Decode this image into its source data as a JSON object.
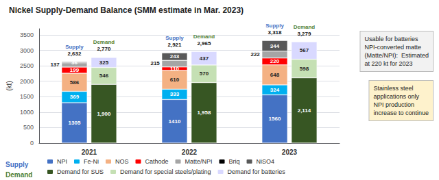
{
  "chart_data": {
    "type": "bar",
    "title": "Nickel Supply-Demand Balance (SMM estimate in Mar. 2023)",
    "ylabel": "(kt)",
    "categories": [
      "2021",
      "2022",
      "2023"
    ],
    "stacked": true,
    "data_labels": true,
    "grid": true,
    "legend": "bottom",
    "ylim": [
      0,
      3700
    ],
    "yticks": [
      0,
      500,
      1000,
      1500,
      2000,
      2500,
      3000,
      3500
    ],
    "stacks": [
      {
        "name": "Supply",
        "color": "#4472C4",
        "totals": [
          2632,
          2921,
          3318
        ],
        "total_labels": [
          "2,632",
          "2,921",
          "3,318"
        ],
        "series": [
          {
            "name": "NPI",
            "color": "#4472C4",
            "values": [
              1305,
              1410,
              1560
            ]
          },
          {
            "name": "Fe-Ni",
            "color": "#00B0F0",
            "values": [
              369,
              333,
              324
            ]
          },
          {
            "name": "NOS",
            "color": "#F4B183",
            "values": [
              586,
              610,
              648
            ]
          },
          {
            "name": "Cathode",
            "color": "#FF0000",
            "values": [
              199,
              110,
              220
            ]
          },
          {
            "name": "Matte/NPI",
            "color": "#A5A5A5",
            "values": [
              137,
              215,
              222
            ]
          },
          {
            "name": "Briq",
            "color": "#000000",
            "values": [
              null,
              null,
              null
            ]
          },
          {
            "name": "NiSO4",
            "color": "#595959",
            "values": [
              36,
              243,
              344
            ]
          }
        ]
      },
      {
        "name": "Demand",
        "color": "#548235",
        "totals": [
          2770,
          2965,
          3279
        ],
        "total_labels": [
          "2,770",
          "2,965",
          "3,279"
        ],
        "series": [
          {
            "name": "Demand for SUS",
            "color": "#375623",
            "values": [
              1900,
              1958,
              2114
            ],
            "value_labels": [
              "1,900",
              "1,958",
              "2,114"
            ]
          },
          {
            "name": "Demand for special steels/plating",
            "color": "#C5E0B4",
            "values": [
              546,
              570,
              598
            ]
          },
          {
            "name": "Demand for batteries",
            "color": "#D9D9FF",
            "values": [
              325,
              437,
              567
            ]
          }
        ]
      }
    ],
    "annotations": [
      {
        "text": "Usable for batteries\nNPI-converted matte\n(Matte/NPI):  Estimated\nat 220 kt for 2023",
        "color": "#F2F2F2"
      },
      {
        "text": "Stainless steel\napplications only\nNPI production\nincrease to continue",
        "color": "#FEF2CC"
      }
    ]
  }
}
